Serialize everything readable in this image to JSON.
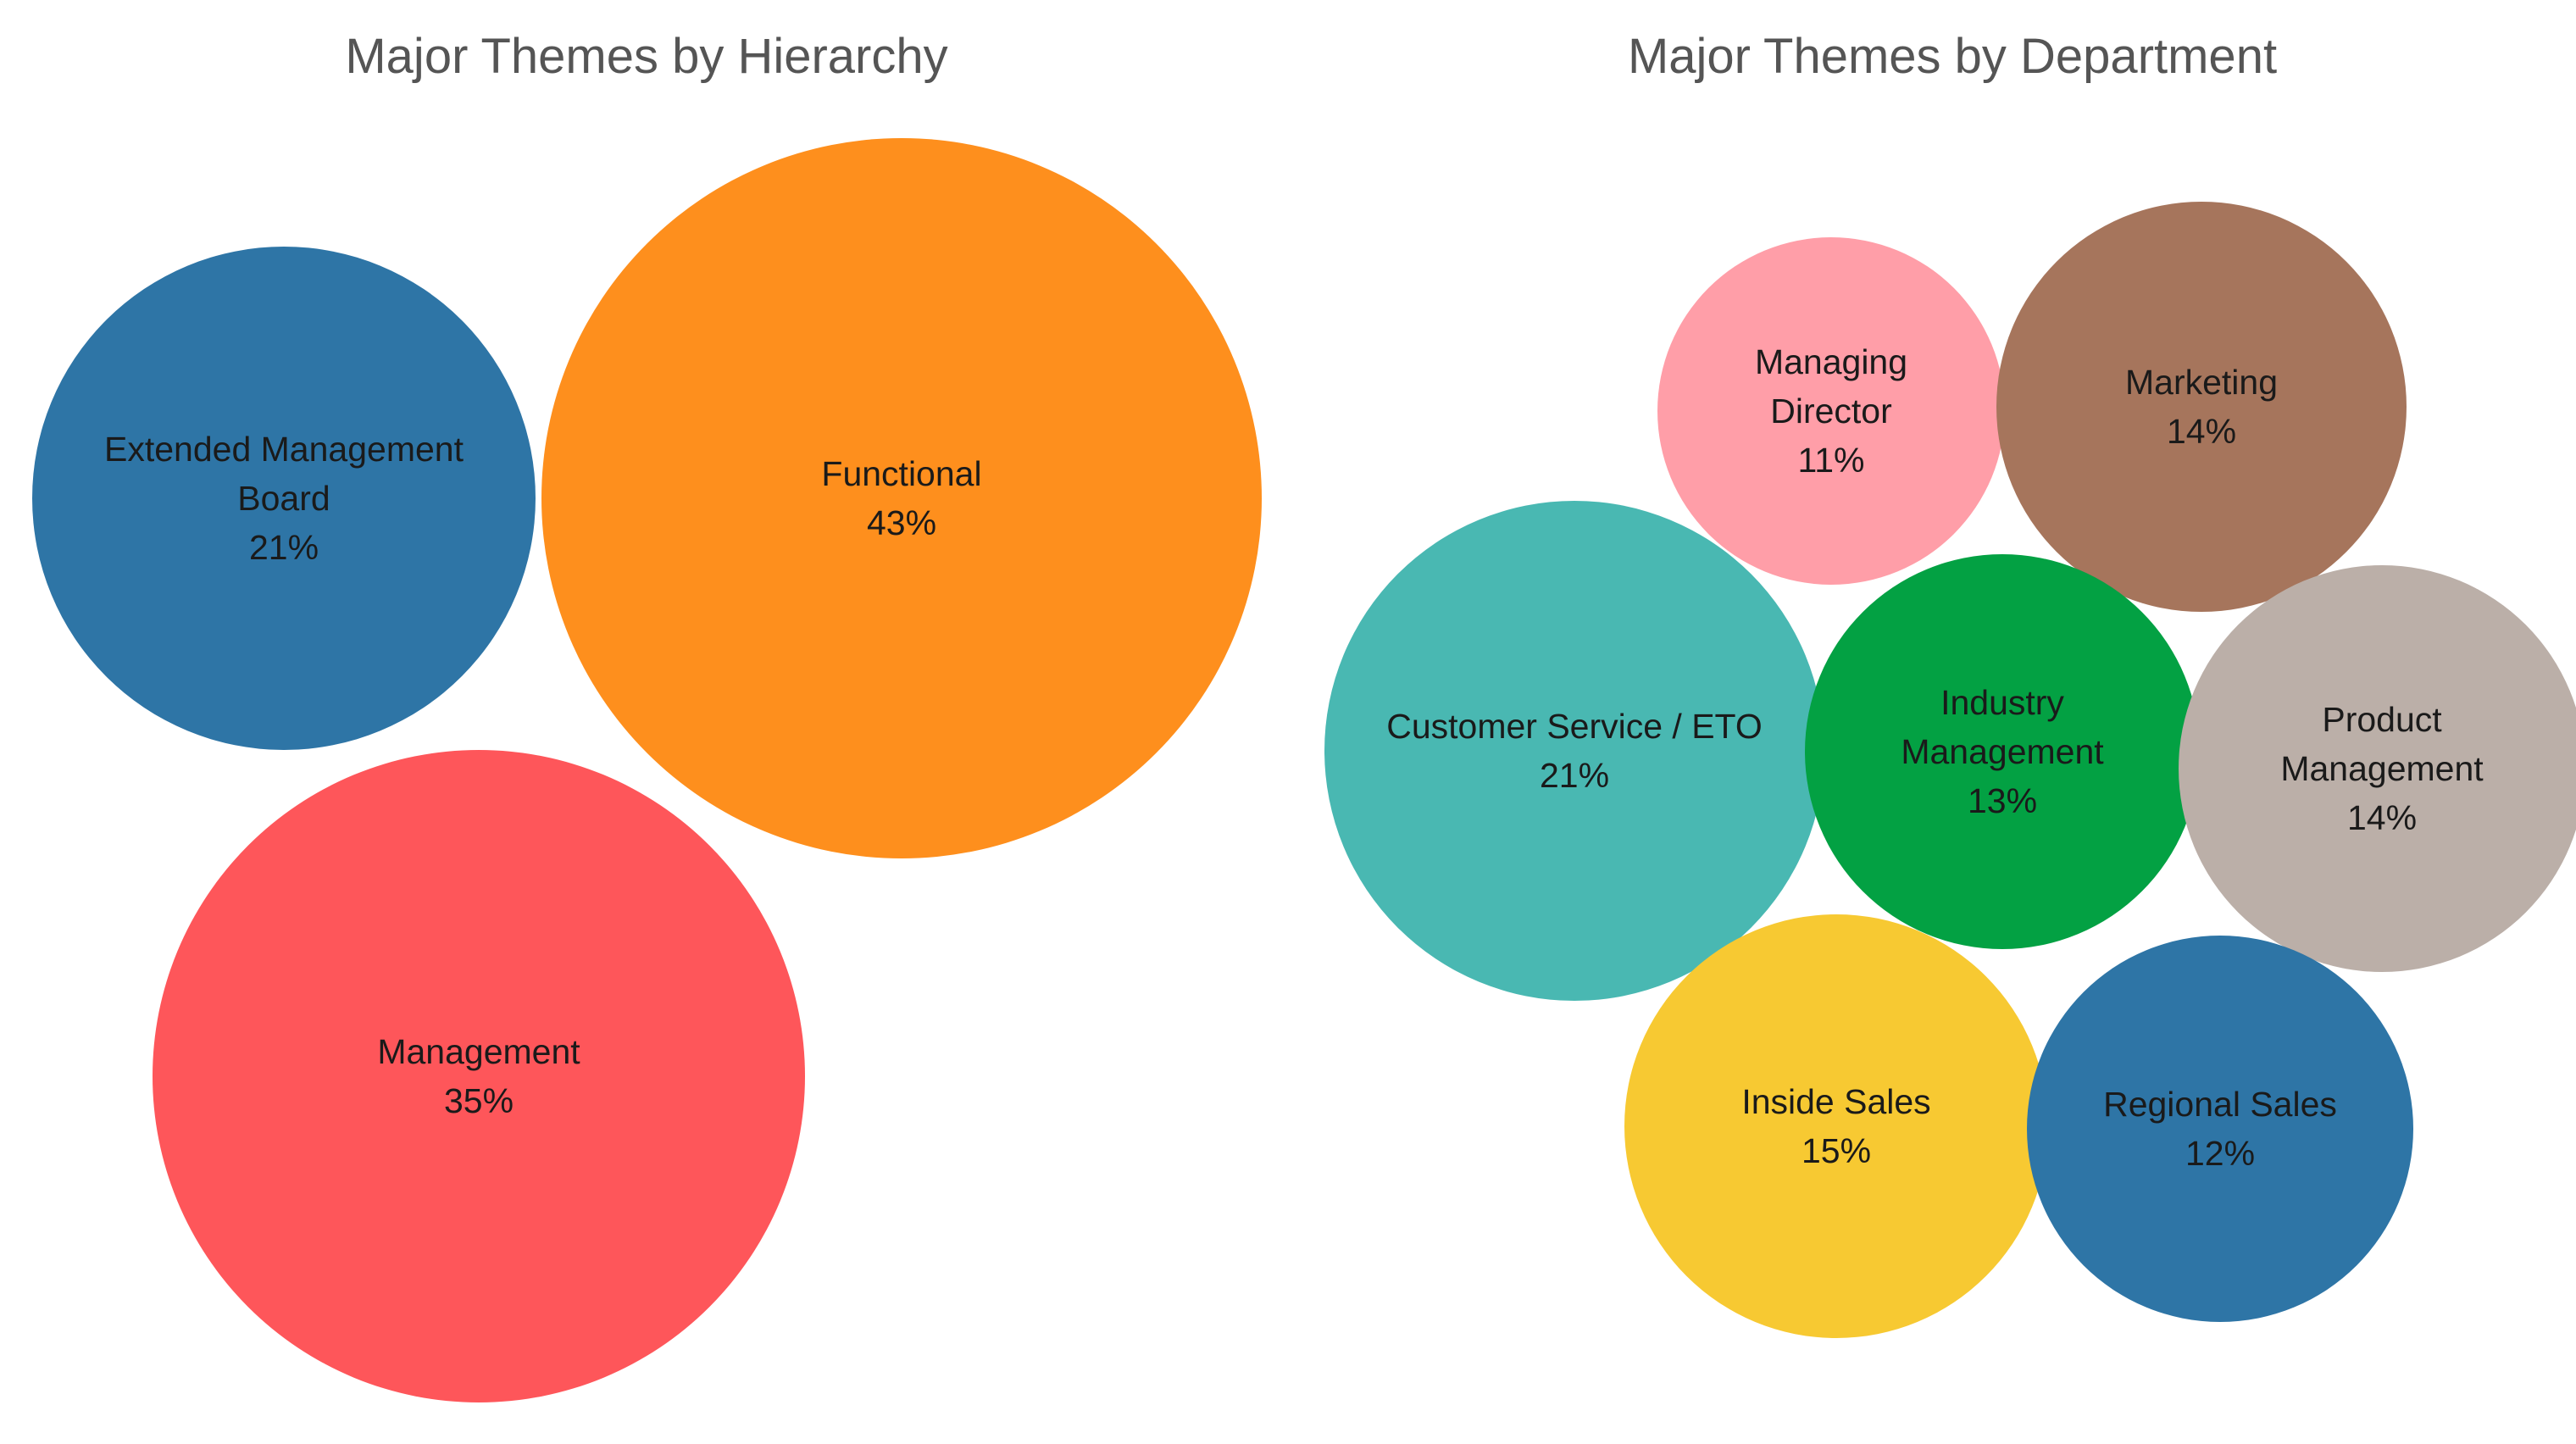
{
  "chart_data": [
    {
      "type": "bubble",
      "title": "Major Themes by Hierarchy",
      "categories": [
        "Extended Management Board",
        "Functional",
        "Management"
      ],
      "values": [
        21,
        43,
        35
      ],
      "unit": "%",
      "labels": [
        {
          "lines": [
            "Extended Management",
            "Board"
          ],
          "value_text": "21%"
        },
        {
          "lines": [
            "Functional"
          ],
          "value_text": "43%"
        },
        {
          "lines": [
            "Management"
          ],
          "value_text": "35%"
        }
      ],
      "colors": [
        "#2e75a6",
        "#fe8f1d",
        "#fe565a"
      ]
    },
    {
      "type": "bubble",
      "title": "Major Themes by Department",
      "categories": [
        "Managing Director",
        "Marketing",
        "Customer Service / ETO",
        "Industry Management",
        "Product Management",
        "Inside Sales",
        "Regional Sales"
      ],
      "values": [
        11,
        14,
        21,
        13,
        14,
        15,
        12
      ],
      "unit": "%",
      "labels": [
        {
          "lines": [
            "Managing",
            "Director"
          ],
          "value_text": "11%"
        },
        {
          "lines": [
            "Marketing"
          ],
          "value_text": "14%"
        },
        {
          "lines": [
            "Customer Service / ETO"
          ],
          "value_text": "21%"
        },
        {
          "lines": [
            "Industry",
            "Management"
          ],
          "value_text": "13%"
        },
        {
          "lines": [
            "Product",
            "Management"
          ],
          "value_text": "14%"
        },
        {
          "lines": [
            "Inside Sales"
          ],
          "value_text": "15%"
        },
        {
          "lines": [
            "Regional Sales"
          ],
          "value_text": "12%"
        }
      ],
      "colors": [
        "#ff9ea8",
        "#a6755c",
        "#49b8b2",
        "#03a143",
        "#bbafa8",
        "#f7c932",
        "#2e75a6"
      ]
    }
  ]
}
